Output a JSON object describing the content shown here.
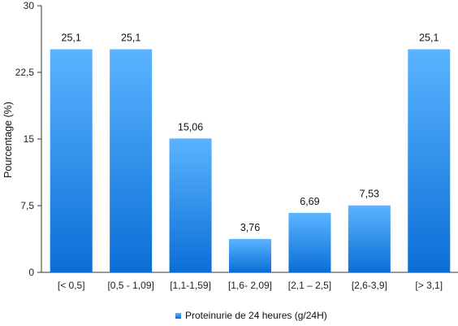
{
  "chart_data": {
    "type": "bar",
    "categories": [
      "[< 0,5]",
      "[0,5 - 1,09]",
      "[1,1-1,59]",
      "[1,6- 2,09]",
      "[2,1 – 2,5]",
      "[2,6-3,9]",
      "[> 3,1]"
    ],
    "values": [
      25.1,
      25.1,
      15.06,
      3.76,
      6.69,
      7.53,
      25.1
    ],
    "data_labels": [
      "25,1",
      "25,1",
      "15,06",
      "3,76",
      "6,69",
      "7,53",
      "25,1"
    ],
    "series": [
      {
        "name": "Proteinurie de 24 heures (g/24H)",
        "values": [
          25.1,
          25.1,
          15.06,
          3.76,
          6.69,
          7.53,
          25.1
        ]
      }
    ],
    "ylabel": "Pourcentage (%)",
    "xlabel": "",
    "ylim": [
      0,
      30
    ],
    "yticks": [
      0,
      7.5,
      15,
      22.5,
      30
    ],
    "ytick_labels": [
      "0",
      "7,5",
      "15",
      "22,5",
      "30"
    ],
    "grid": false,
    "legend_position": "bottom",
    "colors": {
      "bar_top": "#5ab4ff",
      "bar_bottom": "#0a6ed6",
      "axis": "#333333"
    }
  }
}
